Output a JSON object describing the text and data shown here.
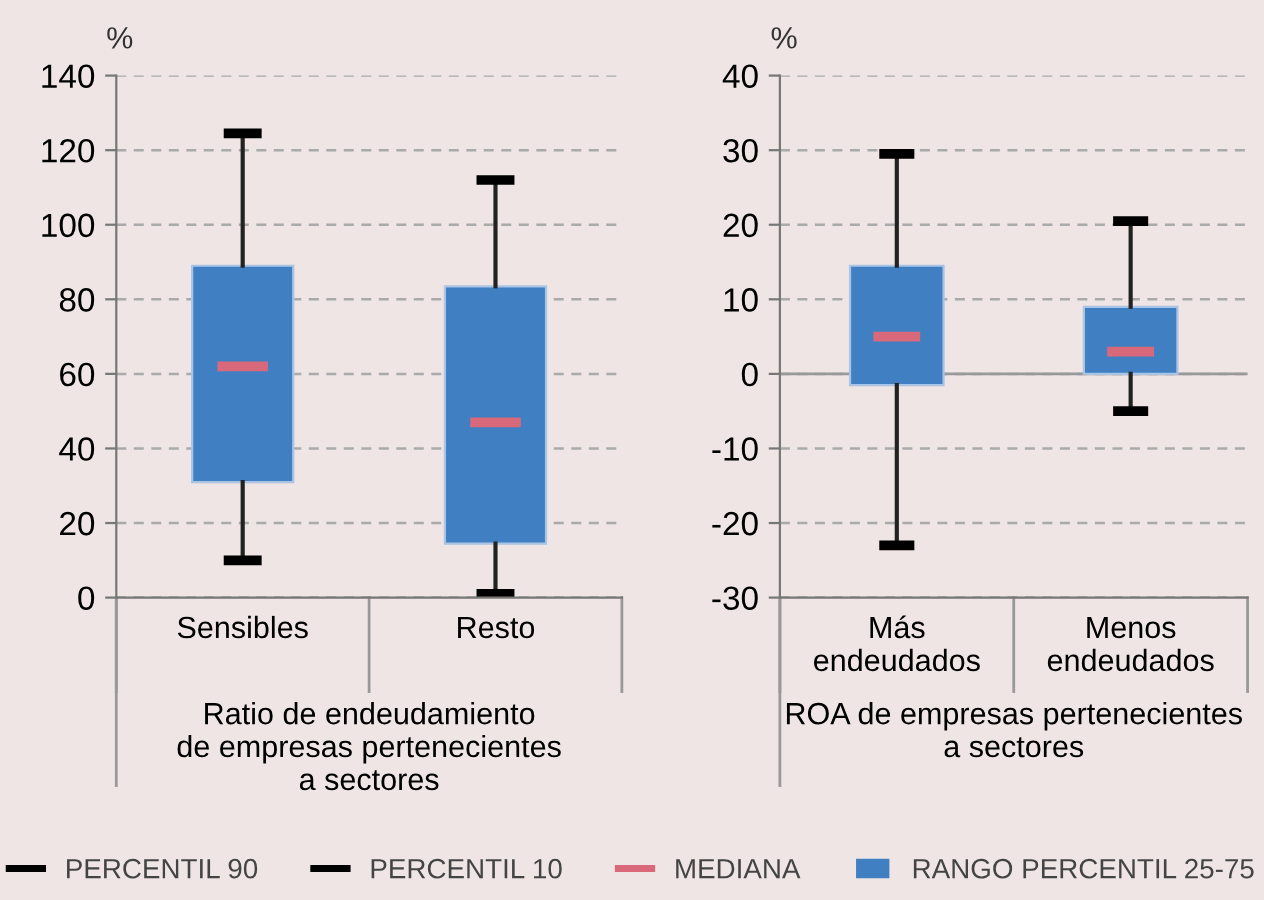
{
  "chart_data": [
    {
      "type": "box",
      "ylabel": "%",
      "xlabel": "Ratio de endeudamiento\nde empresas pertenecientes\na sectores",
      "categories": [
        "Sensibles",
        "Resto"
      ],
      "color": "#4080c2",
      "boxes": [
        {
          "low": 10,
          "q1": 31,
          "median": 62,
          "q3": 89,
          "high": 124.5
        },
        {
          "low": 1,
          "q1": 14.5,
          "median": 47,
          "q3": 83.5,
          "high": 112
        }
      ],
      "annotations": [
        "PERCENTIL 90",
        "PERCENTIL 10",
        "MEDIANA",
        "RANGO PERCENTIL 25-75"
      ],
      "ylim": [
        0,
        140
      ],
      "yticks": [
        0,
        20,
        40,
        60,
        80,
        100,
        120,
        140
      ],
      "grid": "y"
    },
    {
      "type": "box",
      "ylabel": "%",
      "xlabel": "ROA de empresas pertenecientes\na sectores",
      "categories": [
        "Más\nendeudados",
        "Menos\nendeudados"
      ],
      "color": "#4080c2",
      "boxes": [
        {
          "low": -23,
          "q1": -1.5,
          "median": 5,
          "q3": 14.5,
          "high": 29.5
        },
        {
          "low": -5,
          "q1": 0,
          "median": 3,
          "q3": 9,
          "high": 20.5
        }
      ],
      "ylim": [
        -30,
        40
      ],
      "yticks": [
        -30,
        -20,
        -10,
        0,
        10,
        20,
        30,
        40
      ],
      "grid": "y"
    }
  ]
}
